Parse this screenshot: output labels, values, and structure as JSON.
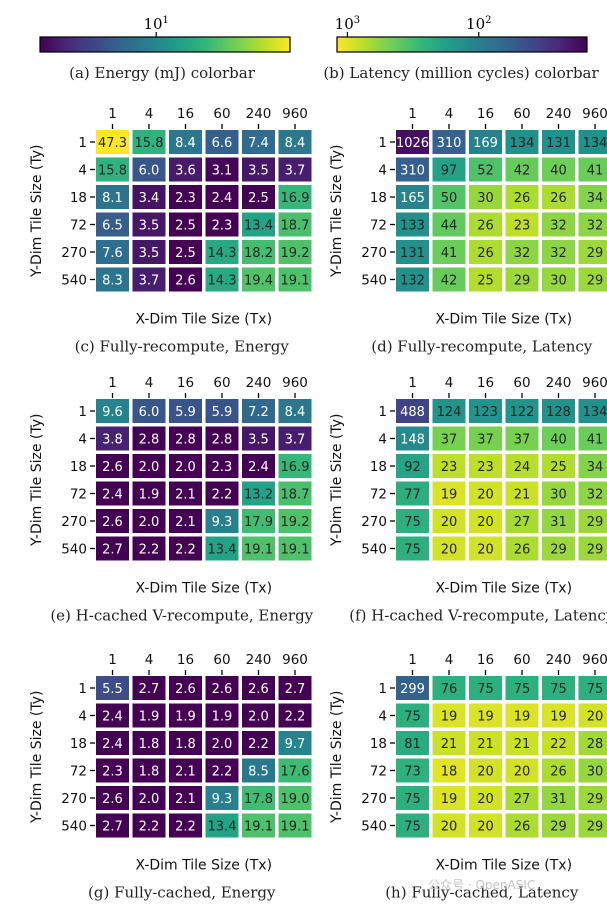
{
  "colormap": [
    "#440154",
    "#482878",
    "#3e4989",
    "#31688e",
    "#26828e",
    "#1f9e89",
    "#35b779",
    "#6ece58",
    "#b5de2b",
    "#fde725"
  ],
  "colorbars": [
    {
      "id": "energy",
      "caption": "(a) Energy (mJ) colorbar",
      "scale": "log",
      "range": [
        3,
        40
      ],
      "ticks": [
        {
          "value": 10,
          "base": "10",
          "exp": "1"
        }
      ]
    },
    {
      "id": "latency",
      "caption": "(b) Latency (million cycles) colorbar",
      "scale": "log",
      "reversed": true,
      "range": [
        15,
        1200
      ],
      "ticks": [
        {
          "value": 1000,
          "base": "10",
          "exp": "3"
        },
        {
          "value": 100,
          "base": "10",
          "exp": "2"
        }
      ]
    }
  ],
  "chart_data": [
    {
      "type": "heatmap",
      "metric": "energy",
      "caption": "(c) Fully-recompute, Energy",
      "xlabel": "X-Dim Tile Size (Tx)",
      "ylabel": "Y-Dim Tile Size (Ty)",
      "x": [
        "1",
        "4",
        "16",
        "60",
        "240",
        "960"
      ],
      "y": [
        "1",
        "4",
        "18",
        "72",
        "270",
        "540"
      ],
      "values": [
        [
          "47.3",
          "15.8",
          "8.4",
          "6.6",
          "7.4",
          "8.4"
        ],
        [
          "15.8",
          "6.0",
          "3.6",
          "3.1",
          "3.5",
          "3.7"
        ],
        [
          "8.1",
          "3.4",
          "2.3",
          "2.4",
          "2.5",
          "16.9"
        ],
        [
          "6.5",
          "3.5",
          "2.5",
          "2.3",
          "13.4",
          "18.7"
        ],
        [
          "7.6",
          "3.5",
          "2.5",
          "14.3",
          "18.2",
          "19.2"
        ],
        [
          "8.3",
          "3.7",
          "2.6",
          "14.3",
          "19.4",
          "19.1"
        ]
      ]
    },
    {
      "type": "heatmap",
      "metric": "latency",
      "caption": "(d) Fully-recompute, Latency",
      "xlabel": "X-Dim Tile Size (Tx)",
      "ylabel": "Y-Dim Tile Size (Ty)",
      "x": [
        "1",
        "4",
        "16",
        "60",
        "240",
        "960"
      ],
      "y": [
        "1",
        "4",
        "18",
        "72",
        "270",
        "540"
      ],
      "values": [
        [
          "1026",
          "310",
          "169",
          "134",
          "131",
          "134"
        ],
        [
          "310",
          "97",
          "52",
          "42",
          "40",
          "41"
        ],
        [
          "165",
          "50",
          "30",
          "26",
          "26",
          "34"
        ],
        [
          "133",
          "44",
          "26",
          "23",
          "32",
          "32"
        ],
        [
          "131",
          "41",
          "26",
          "32",
          "32",
          "29"
        ],
        [
          "132",
          "42",
          "25",
          "29",
          "30",
          "29"
        ]
      ]
    },
    {
      "type": "heatmap",
      "metric": "energy",
      "caption": "(e) H-cached V-recompute, Energy",
      "xlabel": "X-Dim Tile Size (Tx)",
      "ylabel": "Y-Dim Tile Size (Ty)",
      "x": [
        "1",
        "4",
        "16",
        "60",
        "240",
        "960"
      ],
      "y": [
        "1",
        "4",
        "18",
        "72",
        "270",
        "540"
      ],
      "values": [
        [
          "9.6",
          "6.0",
          "5.9",
          "5.9",
          "7.2",
          "8.4"
        ],
        [
          "3.8",
          "2.8",
          "2.8",
          "2.8",
          "3.5",
          "3.7"
        ],
        [
          "2.6",
          "2.0",
          "2.0",
          "2.3",
          "2.4",
          "16.9"
        ],
        [
          "2.4",
          "1.9",
          "2.1",
          "2.2",
          "13.2",
          "18.7"
        ],
        [
          "2.6",
          "2.0",
          "2.1",
          "9.3",
          "17.9",
          "19.2"
        ],
        [
          "2.7",
          "2.2",
          "2.2",
          "13.4",
          "19.1",
          "19.1"
        ]
      ]
    },
    {
      "type": "heatmap",
      "metric": "latency",
      "caption": "(f) H-cached V-recompute, Latency",
      "xlabel": "X-Dim Tile Size (Tx)",
      "ylabel": "Y-Dim Tile Size (Ty)",
      "x": [
        "1",
        "4",
        "16",
        "60",
        "240",
        "960"
      ],
      "y": [
        "1",
        "4",
        "18",
        "72",
        "270",
        "540"
      ],
      "values": [
        [
          "488",
          "124",
          "123",
          "122",
          "128",
          "134"
        ],
        [
          "148",
          "37",
          "37",
          "37",
          "40",
          "41"
        ],
        [
          "92",
          "23",
          "23",
          "24",
          "25",
          "34"
        ],
        [
          "77",
          "19",
          "20",
          "21",
          "30",
          "32"
        ],
        [
          "75",
          "20",
          "20",
          "27",
          "31",
          "29"
        ],
        [
          "75",
          "20",
          "20",
          "26",
          "29",
          "29"
        ]
      ]
    },
    {
      "type": "heatmap",
      "metric": "energy",
      "caption": "(g) Fully-cached, Energy",
      "xlabel": "X-Dim Tile Size (Tx)",
      "ylabel": "Y-Dim Tile Size (Ty)",
      "x": [
        "1",
        "4",
        "16",
        "60",
        "240",
        "960"
      ],
      "y": [
        "1",
        "4",
        "18",
        "72",
        "270",
        "540"
      ],
      "values": [
        [
          "5.5",
          "2.7",
          "2.6",
          "2.6",
          "2.6",
          "2.7"
        ],
        [
          "2.4",
          "1.9",
          "1.9",
          "1.9",
          "2.0",
          "2.2"
        ],
        [
          "2.4",
          "1.8",
          "1.8",
          "2.0",
          "2.2",
          "9.7"
        ],
        [
          "2.3",
          "1.8",
          "2.1",
          "2.2",
          "8.5",
          "17.6"
        ],
        [
          "2.6",
          "2.0",
          "2.1",
          "9.3",
          "17.8",
          "19.0"
        ],
        [
          "2.7",
          "2.2",
          "2.2",
          "13.4",
          "19.1",
          "19.1"
        ]
      ]
    },
    {
      "type": "heatmap",
      "metric": "latency",
      "caption": "(h) Fully-cached, Latency",
      "xlabel": "X-Dim Tile Size (Tx)",
      "ylabel": "Y-Dim Tile Size (Ty)",
      "x": [
        "1",
        "4",
        "16",
        "60",
        "240",
        "960"
      ],
      "y": [
        "1",
        "4",
        "18",
        "72",
        "270",
        "540"
      ],
      "values": [
        [
          "299",
          "76",
          "75",
          "75",
          "75",
          "75"
        ],
        [
          "75",
          "19",
          "19",
          "19",
          "19",
          "20"
        ],
        [
          "81",
          "21",
          "21",
          "21",
          "22",
          "28"
        ],
        [
          "73",
          "18",
          "20",
          "20",
          "26",
          "30"
        ],
        [
          "75",
          "19",
          "20",
          "27",
          "31",
          "29"
        ],
        [
          "75",
          "20",
          "20",
          "26",
          "29",
          "29"
        ]
      ]
    }
  ],
  "watermark": "公众号 · OpenASIC"
}
